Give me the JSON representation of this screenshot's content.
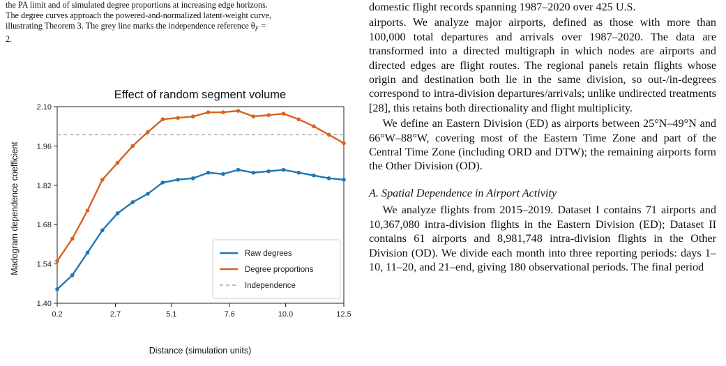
{
  "caption": {
    "lines": [
      "the PA limit and of simulated degree proportions at increasing edge horizons.",
      "The degree curves approach the powered-and-normalized latent-weight curve,",
      "illustrating Theorem 3. The grey line marks the independence reference θ",
      "2."
    ],
    "theta_sub": "F",
    "theta_tail": " ="
  },
  "chart_data": {
    "type": "line",
    "title": "Effect of random segment volume",
    "xlabel": "Distance (simulation units)",
    "ylabel": "Madogram dependence coefficient",
    "xlim": [
      0.2,
      12.5
    ],
    "ylim": [
      1.4,
      2.1
    ],
    "xticks": [
      "0.2",
      "2.7",
      "5.1",
      "7.6",
      "10.0",
      "12.5"
    ],
    "xtick_values": [
      0.2,
      2.7,
      5.1,
      7.6,
      10.0,
      12.5
    ],
    "yticks": [
      "1.40",
      "1.54",
      "1.68",
      "1.82",
      "1.96",
      "2.10"
    ],
    "ytick_values": [
      1.4,
      1.54,
      1.68,
      1.82,
      1.96,
      2.1
    ],
    "grid": false,
    "legend_position": "lower-right",
    "x": [
      0.2,
      0.85,
      1.5,
      2.14,
      2.79,
      3.44,
      4.09,
      4.73,
      5.38,
      6.03,
      6.68,
      7.32,
      7.97,
      8.62,
      9.27,
      9.91,
      10.56,
      11.21,
      11.86,
      12.5
    ],
    "series": [
      {
        "name": "Raw degrees",
        "color": "#1f77b4",
        "values": [
          1.45,
          1.5,
          1.58,
          1.66,
          1.72,
          1.76,
          1.79,
          1.83,
          1.84,
          1.845,
          1.865,
          1.86,
          1.875,
          1.865,
          1.87,
          1.875,
          1.865,
          1.855,
          1.845,
          1.84
        ]
      },
      {
        "name": "Degree proportions",
        "color": "#d9621c",
        "values": [
          1.55,
          1.63,
          1.73,
          1.84,
          1.9,
          1.96,
          2.01,
          2.055,
          2.06,
          2.065,
          2.08,
          2.08,
          2.085,
          2.065,
          2.07,
          2.075,
          2.055,
          2.03,
          2.0,
          1.97
        ]
      }
    ],
    "reference": {
      "name": "Independence",
      "value": 2.0,
      "color": "#999999"
    }
  },
  "body": {
    "top_clip": "domestic flight records spanning 1987–2020 over 425 U.S.",
    "p1_rest": "airports. We analyze major airports, defined as those with more than 100,000 total departures and arrivals over 1987–2020. The data are transformed into a directed multigraph in which nodes are airports and directed edges are flight routes. The regional panels retain flights whose origin and destination both lie in the same division, so out-/in-degrees correspond to intra-division departures/arrivals; unlike undirected treatments [28], this retains both directionality and flight multiplicity.",
    "p2": "We define an Eastern Division (ED) as airports between 25°N–49°N and 66°W–88°W, covering most of the Eastern Time Zone and part of the Central Time Zone (including ORD and DTW); the remaining airports form the Other Division (OD).",
    "section_heading": "A. Spatial Dependence in Airport Activity",
    "p3": "We analyze flights from 2015–2019. Dataset I contains 71 airports and 10,367,080 intra-division flights in the Eastern Division (ED); Dataset II contains 61 airports and 8,981,748 intra-division flights in the Other Division (OD). We divide each month into three reporting periods: days 1–10, 11–20, and 21–end, giving 180 observational periods. The final period"
  }
}
